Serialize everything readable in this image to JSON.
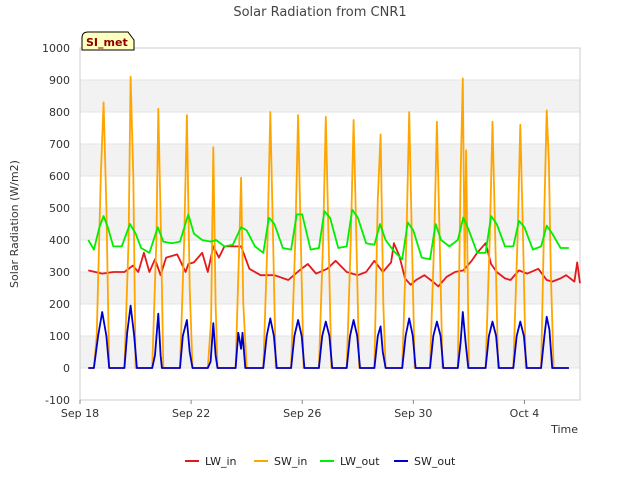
{
  "chart_data": {
    "type": "line",
    "title": "Solar Radiation from CNR1",
    "xlabel": "Time",
    "ylabel": "Solar Radiation (W/m2)",
    "badge": "SI_met",
    "ylim": [
      -100,
      1000
    ],
    "yticks": [
      -100,
      0,
      100,
      200,
      300,
      400,
      500,
      600,
      700,
      800,
      900,
      1000
    ],
    "xlim_days": [
      0,
      18
    ],
    "xticks": [
      {
        "label": "Sep 18",
        "day": 0
      },
      {
        "label": "Sep 22",
        "day": 4
      },
      {
        "label": "Sep 26",
        "day": 8
      },
      {
        "label": "Sep 30",
        "day": 12
      },
      {
        "label": "Oct 4",
        "day": 16
      }
    ],
    "grid": true,
    "legend": "bottom",
    "series": [
      {
        "name": "LW_in",
        "color": "#e31a1c",
        "points": [
          [
            0.3,
            305
          ],
          [
            0.8,
            295
          ],
          [
            1.2,
            300
          ],
          [
            1.6,
            300
          ],
          [
            1.9,
            320
          ],
          [
            2.1,
            300
          ],
          [
            2.3,
            360
          ],
          [
            2.5,
            300
          ],
          [
            2.7,
            340
          ],
          [
            2.9,
            290
          ],
          [
            3.1,
            345
          ],
          [
            3.3,
            350
          ],
          [
            3.5,
            355
          ],
          [
            3.8,
            300
          ],
          [
            3.9,
            325
          ],
          [
            4.1,
            330
          ],
          [
            4.4,
            360
          ],
          [
            4.6,
            300
          ],
          [
            4.8,
            380
          ],
          [
            5.0,
            345
          ],
          [
            5.2,
            380
          ],
          [
            5.5,
            380
          ],
          [
            5.8,
            380
          ],
          [
            6.1,
            310
          ],
          [
            6.5,
            290
          ],
          [
            7.0,
            290
          ],
          [
            7.5,
            275
          ],
          [
            7.9,
            305
          ],
          [
            8.2,
            325
          ],
          [
            8.5,
            295
          ],
          [
            8.9,
            310
          ],
          [
            9.2,
            335
          ],
          [
            9.6,
            300
          ],
          [
            10.0,
            290
          ],
          [
            10.3,
            300
          ],
          [
            10.6,
            335
          ],
          [
            10.9,
            300
          ],
          [
            11.2,
            330
          ],
          [
            11.3,
            390
          ],
          [
            11.5,
            350
          ],
          [
            11.7,
            280
          ],
          [
            11.9,
            260
          ],
          [
            12.1,
            275
          ],
          [
            12.4,
            290
          ],
          [
            12.7,
            270
          ],
          [
            12.9,
            255
          ],
          [
            13.2,
            285
          ],
          [
            13.5,
            300
          ],
          [
            13.8,
            305
          ],
          [
            14.1,
            335
          ],
          [
            14.3,
            360
          ],
          [
            14.6,
            390
          ],
          [
            14.8,
            325
          ],
          [
            15.0,
            300
          ],
          [
            15.3,
            280
          ],
          [
            15.5,
            275
          ],
          [
            15.8,
            305
          ],
          [
            16.1,
            295
          ],
          [
            16.5,
            310
          ],
          [
            16.8,
            275
          ],
          [
            17.0,
            270
          ],
          [
            17.3,
            280
          ],
          [
            17.5,
            290
          ],
          [
            17.8,
            270
          ],
          [
            17.9,
            330
          ],
          [
            18.0,
            265
          ]
        ]
      },
      {
        "name": "SW_in",
        "color": "#ffa500",
        "points": [
          [
            0.3,
            0
          ],
          [
            0.5,
            0
          ],
          [
            0.6,
            100
          ],
          [
            0.75,
            600
          ],
          [
            0.85,
            830
          ],
          [
            0.95,
            500
          ],
          [
            1.05,
            0
          ],
          [
            1.6,
            0
          ],
          [
            1.75,
            400
          ],
          [
            1.82,
            910
          ],
          [
            1.92,
            600
          ],
          [
            2.0,
            0
          ],
          [
            2.6,
            0
          ],
          [
            2.75,
            400
          ],
          [
            2.82,
            810
          ],
          [
            2.92,
            400
          ],
          [
            3.0,
            0
          ],
          [
            3.6,
            0
          ],
          [
            3.75,
            400
          ],
          [
            3.85,
            790
          ],
          [
            3.95,
            250
          ],
          [
            4.05,
            0
          ],
          [
            4.6,
            0
          ],
          [
            4.72,
            150
          ],
          [
            4.8,
            690
          ],
          [
            4.88,
            200
          ],
          [
            4.95,
            0
          ],
          [
            5.6,
            0
          ],
          [
            5.72,
            350
          ],
          [
            5.8,
            595
          ],
          [
            5.88,
            200
          ],
          [
            6.0,
            0
          ],
          [
            6.6,
            0
          ],
          [
            6.75,
            400
          ],
          [
            6.85,
            800
          ],
          [
            6.95,
            400
          ],
          [
            7.05,
            0
          ],
          [
            7.6,
            0
          ],
          [
            7.75,
            400
          ],
          [
            7.85,
            790
          ],
          [
            7.95,
            400
          ],
          [
            8.05,
            0
          ],
          [
            8.6,
            0
          ],
          [
            8.75,
            400
          ],
          [
            8.85,
            785
          ],
          [
            8.95,
            400
          ],
          [
            9.05,
            0
          ],
          [
            9.6,
            0
          ],
          [
            9.75,
            400
          ],
          [
            9.85,
            775
          ],
          [
            9.95,
            400
          ],
          [
            10.05,
            0
          ],
          [
            10.6,
            0
          ],
          [
            10.72,
            530
          ],
          [
            10.82,
            730
          ],
          [
            10.92,
            200
          ],
          [
            11.0,
            0
          ],
          [
            11.6,
            0
          ],
          [
            11.75,
            400
          ],
          [
            11.85,
            800
          ],
          [
            11.95,
            400
          ],
          [
            12.05,
            0
          ],
          [
            12.6,
            0
          ],
          [
            12.75,
            400
          ],
          [
            12.85,
            770
          ],
          [
            12.95,
            400
          ],
          [
            13.05,
            0
          ],
          [
            13.6,
            0
          ],
          [
            13.7,
            600
          ],
          [
            13.78,
            905
          ],
          [
            13.85,
            300
          ],
          [
            13.9,
            680
          ],
          [
            14.0,
            0
          ],
          [
            14.6,
            0
          ],
          [
            14.75,
            400
          ],
          [
            14.85,
            770
          ],
          [
            14.95,
            400
          ],
          [
            15.05,
            0
          ],
          [
            15.6,
            0
          ],
          [
            15.75,
            400
          ],
          [
            15.85,
            760
          ],
          [
            15.95,
            400
          ],
          [
            16.05,
            0
          ],
          [
            16.6,
            0
          ],
          [
            16.72,
            500
          ],
          [
            16.8,
            805
          ],
          [
            16.88,
            640
          ],
          [
            16.95,
            300
          ],
          [
            17.05,
            0
          ],
          [
            17.6,
            0
          ]
        ]
      },
      {
        "name": "LW_out",
        "color": "#00ee00",
        "points": [
          [
            0.3,
            400
          ],
          [
            0.5,
            370
          ],
          [
            0.7,
            440
          ],
          [
            0.85,
            475
          ],
          [
            1.0,
            440
          ],
          [
            1.2,
            380
          ],
          [
            1.5,
            380
          ],
          [
            1.8,
            450
          ],
          [
            2.0,
            420
          ],
          [
            2.2,
            375
          ],
          [
            2.5,
            360
          ],
          [
            2.8,
            440
          ],
          [
            3.0,
            395
          ],
          [
            3.3,
            390
          ],
          [
            3.6,
            395
          ],
          [
            3.9,
            480
          ],
          [
            4.1,
            420
          ],
          [
            4.4,
            400
          ],
          [
            4.7,
            395
          ],
          [
            4.9,
            400
          ],
          [
            5.2,
            380
          ],
          [
            5.5,
            385
          ],
          [
            5.8,
            440
          ],
          [
            6.0,
            430
          ],
          [
            6.3,
            380
          ],
          [
            6.6,
            360
          ],
          [
            6.8,
            470
          ],
          [
            7.0,
            450
          ],
          [
            7.3,
            375
          ],
          [
            7.6,
            370
          ],
          [
            7.8,
            480
          ],
          [
            8.0,
            480
          ],
          [
            8.3,
            370
          ],
          [
            8.6,
            375
          ],
          [
            8.8,
            490
          ],
          [
            9.0,
            470
          ],
          [
            9.3,
            375
          ],
          [
            9.6,
            380
          ],
          [
            9.8,
            495
          ],
          [
            10.0,
            470
          ],
          [
            10.3,
            390
          ],
          [
            10.6,
            385
          ],
          [
            10.8,
            450
          ],
          [
            11.0,
            400
          ],
          [
            11.3,
            365
          ],
          [
            11.6,
            340
          ],
          [
            11.8,
            455
          ],
          [
            12.0,
            430
          ],
          [
            12.3,
            345
          ],
          [
            12.6,
            340
          ],
          [
            12.8,
            450
          ],
          [
            13.0,
            400
          ],
          [
            13.3,
            380
          ],
          [
            13.6,
            400
          ],
          [
            13.8,
            470
          ],
          [
            14.0,
            430
          ],
          [
            14.3,
            360
          ],
          [
            14.6,
            360
          ],
          [
            14.8,
            475
          ],
          [
            15.0,
            450
          ],
          [
            15.3,
            380
          ],
          [
            15.6,
            380
          ],
          [
            15.8,
            460
          ],
          [
            16.0,
            440
          ],
          [
            16.3,
            370
          ],
          [
            16.6,
            380
          ],
          [
            16.8,
            445
          ],
          [
            17.0,
            420
          ],
          [
            17.3,
            375
          ],
          [
            17.6,
            375
          ]
        ]
      },
      {
        "name": "SW_out",
        "color": "#0000cc",
        "points": [
          [
            0.3,
            0
          ],
          [
            0.5,
            0
          ],
          [
            0.65,
            100
          ],
          [
            0.8,
            175
          ],
          [
            0.95,
            100
          ],
          [
            1.05,
            0
          ],
          [
            1.6,
            0
          ],
          [
            1.7,
            110
          ],
          [
            1.82,
            195
          ],
          [
            1.95,
            100
          ],
          [
            2.05,
            0
          ],
          [
            2.6,
            0
          ],
          [
            2.7,
            40
          ],
          [
            2.82,
            170
          ],
          [
            2.9,
            40
          ],
          [
            2.95,
            0
          ],
          [
            3.6,
            0
          ],
          [
            3.7,
            100
          ],
          [
            3.85,
            150
          ],
          [
            3.95,
            50
          ],
          [
            4.05,
            0
          ],
          [
            4.6,
            0
          ],
          [
            4.7,
            20
          ],
          [
            4.8,
            140
          ],
          [
            4.88,
            40
          ],
          [
            4.95,
            0
          ],
          [
            5.6,
            0
          ],
          [
            5.7,
            110
          ],
          [
            5.8,
            60
          ],
          [
            5.85,
            110
          ],
          [
            5.95,
            0
          ],
          [
            6.6,
            0
          ],
          [
            6.72,
            100
          ],
          [
            6.85,
            155
          ],
          [
            6.98,
            100
          ],
          [
            7.08,
            0
          ],
          [
            7.6,
            0
          ],
          [
            7.72,
            100
          ],
          [
            7.85,
            150
          ],
          [
            7.98,
            100
          ],
          [
            8.08,
            0
          ],
          [
            8.6,
            0
          ],
          [
            8.72,
            100
          ],
          [
            8.85,
            145
          ],
          [
            8.98,
            100
          ],
          [
            9.08,
            0
          ],
          [
            9.6,
            0
          ],
          [
            9.72,
            100
          ],
          [
            9.85,
            150
          ],
          [
            9.98,
            100
          ],
          [
            10.08,
            0
          ],
          [
            10.6,
            0
          ],
          [
            10.72,
            100
          ],
          [
            10.82,
            130
          ],
          [
            10.9,
            50
          ],
          [
            11.0,
            0
          ],
          [
            11.6,
            0
          ],
          [
            11.72,
            100
          ],
          [
            11.85,
            155
          ],
          [
            11.98,
            100
          ],
          [
            12.08,
            0
          ],
          [
            12.6,
            0
          ],
          [
            12.72,
            100
          ],
          [
            12.85,
            145
          ],
          [
            12.98,
            100
          ],
          [
            13.08,
            0
          ],
          [
            13.6,
            0
          ],
          [
            13.7,
            80
          ],
          [
            13.78,
            175
          ],
          [
            13.88,
            80
          ],
          [
            13.98,
            0
          ],
          [
            14.6,
            0
          ],
          [
            14.72,
            100
          ],
          [
            14.85,
            145
          ],
          [
            14.98,
            100
          ],
          [
            15.08,
            0
          ],
          [
            15.6,
            0
          ],
          [
            15.72,
            100
          ],
          [
            15.85,
            145
          ],
          [
            15.98,
            100
          ],
          [
            16.08,
            0
          ],
          [
            16.6,
            0
          ],
          [
            16.72,
            100
          ],
          [
            16.8,
            160
          ],
          [
            16.9,
            120
          ],
          [
            17.0,
            0
          ],
          [
            17.6,
            0
          ]
        ]
      }
    ]
  }
}
